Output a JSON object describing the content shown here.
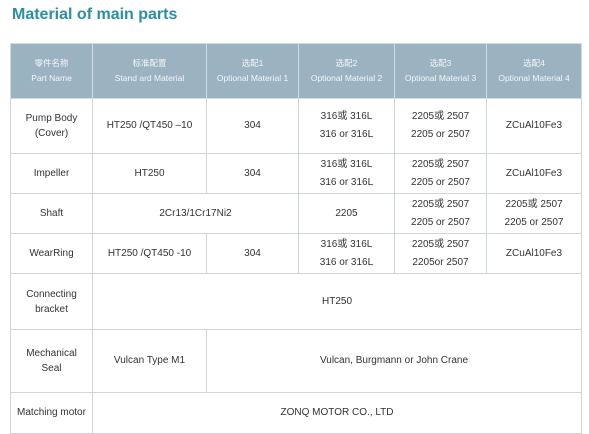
{
  "title": "Material of main parts",
  "header": [
    {
      "cn": "零件名称",
      "en": "Part Name"
    },
    {
      "cn": "标准配置",
      "en": "Stand ard Material"
    },
    {
      "cn": "选配1",
      "en": "Optional Material 1"
    },
    {
      "cn": "选配2",
      "en": "Optional Material 2"
    },
    {
      "cn": "选配3",
      "en": "Optional Material 3"
    },
    {
      "cn": "选配4",
      "en": "Optional Material 4"
    }
  ],
  "rows": {
    "pump_body": {
      "part": [
        "Pump Body",
        "(Cover)"
      ],
      "standard": "HT250 /QT450 –10",
      "opt1": "304",
      "opt2": [
        "316或 316L",
        "316 or 316L"
      ],
      "opt3": [
        "2205或 2507",
        "2205 or 2507"
      ],
      "opt4": "ZCuAl10Fe3"
    },
    "impeller": {
      "part": "Impeller",
      "standard": "HT250",
      "opt1": "304",
      "opt2": [
        "316或 316L",
        "316 or 316L"
      ],
      "opt3": [
        "2205或 2507",
        "2205 or 2507"
      ],
      "opt4": "ZCuAl10Fe3"
    },
    "shaft": {
      "part": "Shaft",
      "standard_opt1": "2Cr13/1Cr17Ni2",
      "opt2": "2205",
      "opt3": [
        "2205或 2507",
        "2205 or 2507"
      ],
      "opt4": [
        "2205或 2507",
        "2205 or 2507"
      ]
    },
    "wear_ring": {
      "part": "WearRing",
      "standard": "HT250 /QT450 -10",
      "opt1": "304",
      "opt2": [
        "316或 316L",
        "316 or 316L"
      ],
      "opt3": [
        "2205或 2507",
        "2205or 2507"
      ],
      "opt4": "ZCuAl10Fe3"
    },
    "connecting_bracket": {
      "part": [
        "Connecting",
        "bracket"
      ],
      "value": "HT250"
    },
    "mechanical_seal": {
      "part": [
        "Mechanical",
        "Seal"
      ],
      "standard": "Vulcan Type M1",
      "optional": "Vulcan, Burgmann or John Crane"
    },
    "matching_motor": {
      "part": "Matching motor",
      "value": "ZONQ MOTOR CO.,  LTD"
    }
  },
  "colors": {
    "title": "#2a8fa3",
    "header_bg": "#9bb2c0",
    "grid": "#cfd6d9"
  }
}
